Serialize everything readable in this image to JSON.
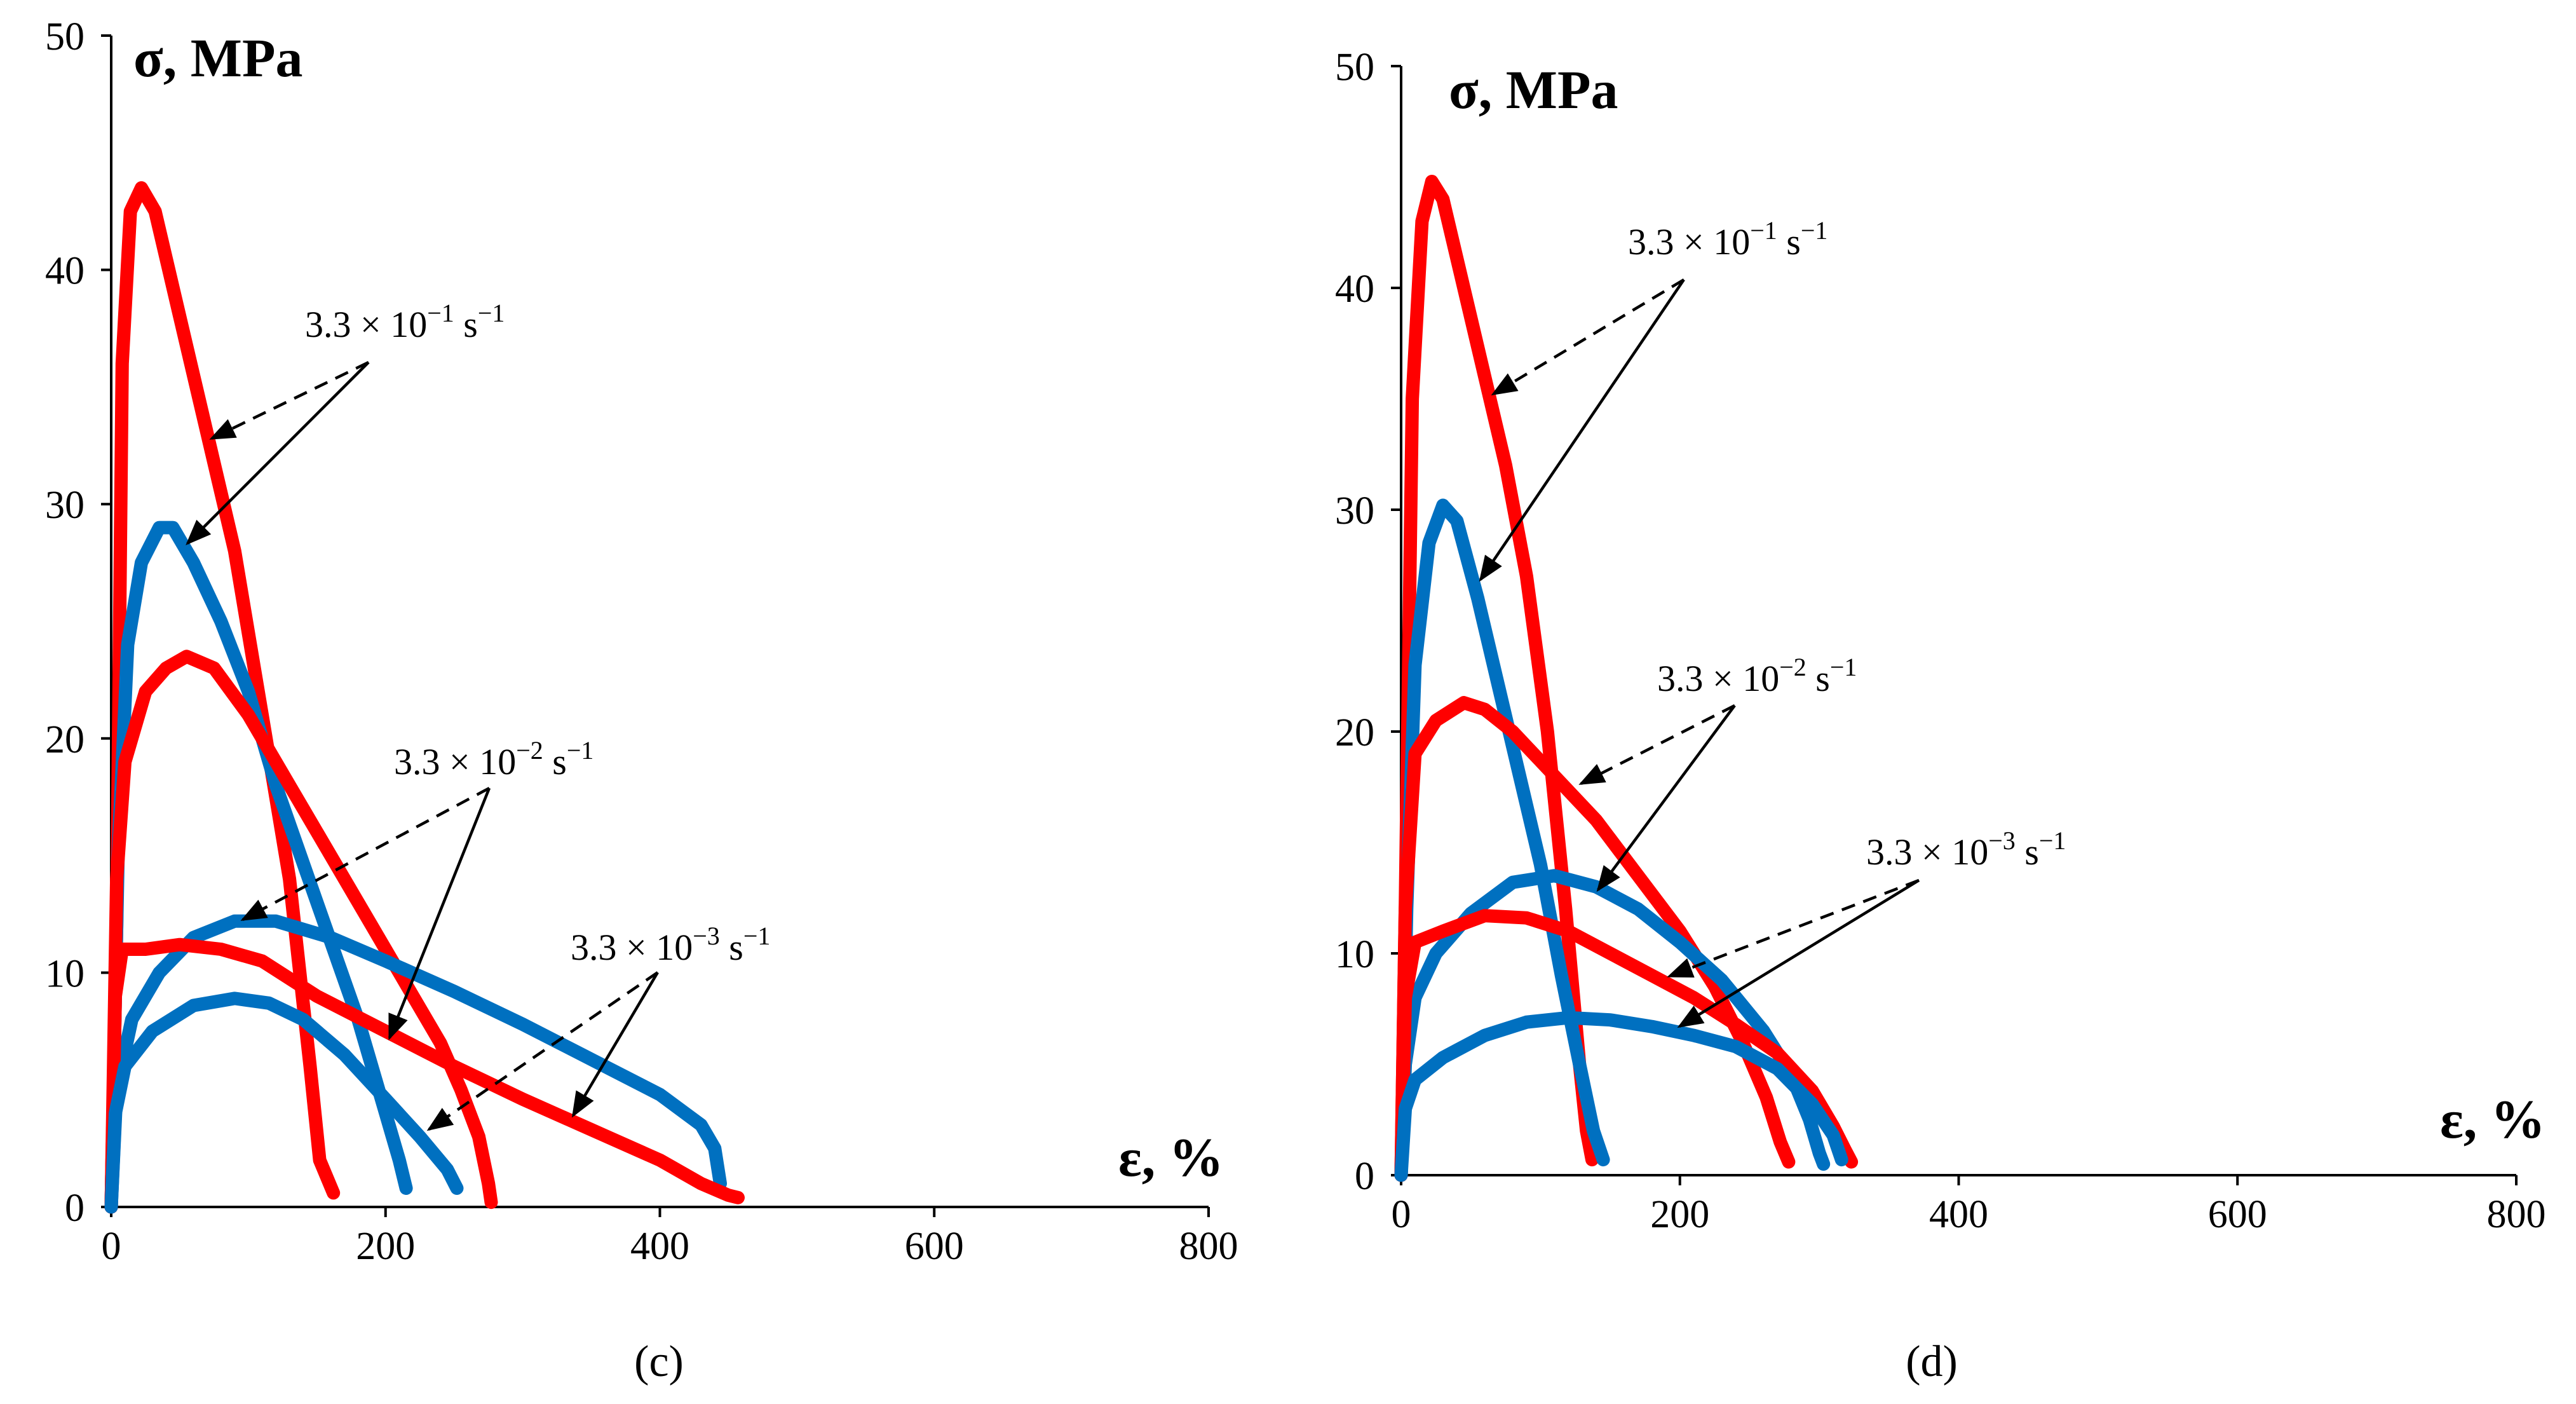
{
  "colors": {
    "series_a": "#ff0000",
    "series_b": "#0070c0",
    "axis": "#000000"
  },
  "chart_data": [
    {
      "type": "line",
      "panel_label": "(c)",
      "ylabel": "σ, MPa",
      "xlabel": "ε, %",
      "xlim": [
        0,
        800
      ],
      "ylim": [
        0,
        50
      ],
      "x_ticks": [
        "0",
        "200",
        "400",
        "600",
        "800"
      ],
      "y_ticks": [
        "0",
        "10",
        "20",
        "30",
        "40",
        "50"
      ],
      "grid": false,
      "series": [
        {
          "color": "series_a",
          "points": [
            [
              0,
              0
            ],
            [
              4,
              12
            ],
            [
              8,
              36
            ],
            [
              14,
              42.5
            ],
            [
              22,
              43.5
            ],
            [
              32,
              42.5
            ],
            [
              50,
              38
            ],
            [
              70,
              33
            ],
            [
              90,
              28
            ],
            [
              110,
              21
            ],
            [
              130,
              14
            ],
            [
              145,
              6
            ],
            [
              152,
              2
            ],
            [
              162,
              0.6
            ]
          ]
        },
        {
          "color": "series_b",
          "points": [
            [
              0,
              0
            ],
            [
              5,
              15
            ],
            [
              12,
              24
            ],
            [
              22,
              27.5
            ],
            [
              35,
              29
            ],
            [
              45,
              29
            ],
            [
              60,
              27.5
            ],
            [
              80,
              25
            ],
            [
              100,
              22
            ],
            [
              120,
              18
            ],
            [
              150,
              13
            ],
            [
              180,
              8
            ],
            [
              200,
              4
            ],
            [
              210,
              2
            ],
            [
              215,
              0.8
            ]
          ]
        },
        {
          "color": "series_a",
          "points": [
            [
              0,
              0
            ],
            [
              4,
              14
            ],
            [
              10,
              19
            ],
            [
              25,
              22
            ],
            [
              40,
              23
            ],
            [
              55,
              23.5
            ],
            [
              75,
              23
            ],
            [
              100,
              21
            ],
            [
              130,
              18
            ],
            [
              160,
              15
            ],
            [
              190,
              12
            ],
            [
              220,
              9
            ],
            [
              240,
              7
            ],
            [
              255,
              5
            ],
            [
              268,
              3
            ],
            [
              275,
              1
            ],
            [
              277,
              0.2
            ]
          ]
        },
        {
          "color": "series_b",
          "points": [
            [
              0,
              0
            ],
            [
              4,
              5
            ],
            [
              15,
              8
            ],
            [
              35,
              10
            ],
            [
              60,
              11.5
            ],
            [
              90,
              12.2
            ],
            [
              120,
              12.2
            ],
            [
              160,
              11.5
            ],
            [
              200,
              10.5
            ],
            [
              250,
              9.2
            ],
            [
              300,
              7.8
            ],
            [
              350,
              6.3
            ],
            [
              400,
              4.8
            ],
            [
              430,
              3.5
            ],
            [
              440,
              2.5
            ],
            [
              444,
              1
            ]
          ]
        },
        {
          "color": "series_a",
          "points": [
            [
              0,
              0
            ],
            [
              3,
              9
            ],
            [
              8,
              11
            ],
            [
              25,
              11
            ],
            [
              50,
              11.2
            ],
            [
              80,
              11
            ],
            [
              110,
              10.5
            ],
            [
              150,
              9
            ],
            [
              200,
              7.5
            ],
            [
              250,
              6
            ],
            [
              300,
              4.6
            ],
            [
              350,
              3.3
            ],
            [
              400,
              2
            ],
            [
              430,
              1
            ],
            [
              450,
              0.5
            ],
            [
              457,
              0.4
            ]
          ]
        },
        {
          "color": "series_b",
          "points": [
            [
              0,
              0
            ],
            [
              3,
              4
            ],
            [
              10,
              6
            ],
            [
              30,
              7.5
            ],
            [
              60,
              8.6
            ],
            [
              90,
              8.9
            ],
            [
              115,
              8.7
            ],
            [
              140,
              8
            ],
            [
              170,
              6.5
            ],
            [
              200,
              4.6
            ],
            [
              225,
              3
            ],
            [
              245,
              1.6
            ],
            [
              252,
              0.8
            ]
          ]
        }
      ],
      "annotations": [
        {
          "label": "3.3 × 10",
          "exponent": "−1",
          "unit": " s",
          "unit_exponent": "−1"
        },
        {
          "label": "3.3 × 10",
          "exponent": "−2",
          "unit": " s",
          "unit_exponent": "−1"
        },
        {
          "label": "3.3 × 10",
          "exponent": "−3",
          "unit": " s",
          "unit_exponent": "−1"
        }
      ]
    },
    {
      "type": "line",
      "panel_label": "(d)",
      "ylabel": "σ, MPa",
      "xlabel": "ε, %",
      "xlim": [
        0,
        800
      ],
      "ylim": [
        0,
        50
      ],
      "x_ticks": [
        "0",
        "200",
        "400",
        "600",
        "800"
      ],
      "y_ticks": [
        "0",
        "10",
        "20",
        "30",
        "40",
        "50"
      ],
      "grid": false,
      "series": [
        {
          "color": "series_a",
          "points": [
            [
              0,
              0
            ],
            [
              3,
              12
            ],
            [
              8,
              35
            ],
            [
              15,
              43
            ],
            [
              22,
              44.8
            ],
            [
              30,
              44
            ],
            [
              45,
              40
            ],
            [
              60,
              36
            ],
            [
              75,
              32
            ],
            [
              90,
              27
            ],
            [
              105,
              20
            ],
            [
              118,
              12
            ],
            [
              128,
              5
            ],
            [
              133,
              2
            ],
            [
              137,
              0.7
            ]
          ]
        },
        {
          "color": "series_b",
          "points": [
            [
              0,
              0
            ],
            [
              4,
              12
            ],
            [
              10,
              23
            ],
            [
              20,
              28.5
            ],
            [
              30,
              30.2
            ],
            [
              40,
              29.5
            ],
            [
              55,
              26
            ],
            [
              70,
              22
            ],
            [
              85,
              18
            ],
            [
              100,
              14
            ],
            [
              115,
              9
            ],
            [
              128,
              5
            ],
            [
              138,
              2
            ],
            [
              145,
              0.7
            ]
          ]
        },
        {
          "color": "series_a",
          "points": [
            [
              0,
              0
            ],
            [
              3,
              12
            ],
            [
              10,
              19
            ],
            [
              25,
              20.5
            ],
            [
              45,
              21.3
            ],
            [
              60,
              21
            ],
            [
              80,
              20
            ],
            [
              110,
              18
            ],
            [
              140,
              16
            ],
            [
              170,
              13.5
            ],
            [
              200,
              11
            ],
            [
              225,
              8.5
            ],
            [
              245,
              6
            ],
            [
              262,
              3.5
            ],
            [
              272,
              1.5
            ],
            [
              278,
              0.6
            ]
          ]
        },
        {
          "color": "series_b",
          "points": [
            [
              0,
              0
            ],
            [
              3,
              5
            ],
            [
              10,
              8
            ],
            [
              25,
              10
            ],
            [
              50,
              11.8
            ],
            [
              80,
              13.2
            ],
            [
              110,
              13.5
            ],
            [
              140,
              13
            ],
            [
              170,
              12
            ],
            [
              200,
              10.5
            ],
            [
              230,
              8.8
            ],
            [
              260,
              6.5
            ],
            [
              280,
              4.5
            ],
            [
              293,
              2.5
            ],
            [
              300,
              1
            ],
            [
              303,
              0.5
            ]
          ]
        },
        {
          "color": "series_a",
          "points": [
            [
              0,
              0
            ],
            [
              3,
              8
            ],
            [
              10,
              10.5
            ],
            [
              30,
              11
            ],
            [
              60,
              11.7
            ],
            [
              90,
              11.6
            ],
            [
              120,
              11
            ],
            [
              150,
              10
            ],
            [
              180,
              9
            ],
            [
              210,
              8
            ],
            [
              240,
              6.8
            ],
            [
              270,
              5.5
            ],
            [
              295,
              3.8
            ],
            [
              310,
              2.2
            ],
            [
              318,
              1.2
            ],
            [
              323,
              0.6
            ]
          ]
        },
        {
          "color": "series_b",
          "points": [
            [
              0,
              0
            ],
            [
              3,
              3
            ],
            [
              10,
              4.3
            ],
            [
              30,
              5.3
            ],
            [
              60,
              6.3
            ],
            [
              90,
              6.9
            ],
            [
              120,
              7.1
            ],
            [
              150,
              7
            ],
            [
              180,
              6.7
            ],
            [
              210,
              6.3
            ],
            [
              240,
              5.8
            ],
            [
              270,
              4.8
            ],
            [
              295,
              3.2
            ],
            [
              310,
              1.8
            ],
            [
              316,
              0.7
            ]
          ]
        }
      ],
      "annotations": [
        {
          "label": "3.3 × 10",
          "exponent": "−1",
          "unit": " s",
          "unit_exponent": "−1"
        },
        {
          "label": "3.3 × 10",
          "exponent": "−2",
          "unit": " s",
          "unit_exponent": "−1"
        },
        {
          "label": "3.3 × 10",
          "exponent": "−3",
          "unit": " s",
          "unit_exponent": "−1"
        }
      ]
    }
  ]
}
